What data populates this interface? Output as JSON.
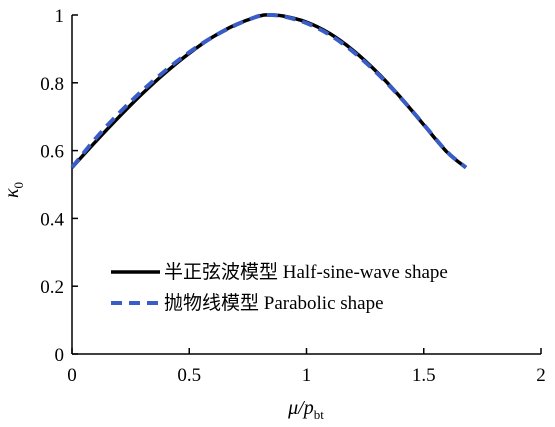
{
  "chart_data": {
    "type": "line",
    "title": "",
    "xlabel": {
      "main": "μ/p",
      "sub": "bt"
    },
    "ylabel": {
      "main": "κ",
      "sub": "0"
    },
    "xlim": [
      0,
      2
    ],
    "ylim": [
      0,
      1
    ],
    "xticks": [
      0,
      0.5,
      1,
      1.5,
      2
    ],
    "yticks": [
      0,
      0.2,
      0.4,
      0.6,
      0.8,
      1
    ],
    "xtick_labels": [
      "0",
      "0.5",
      "1",
      "1.5",
      "2"
    ],
    "ytick_labels": [
      "0",
      "0.2",
      "0.4",
      "0.6",
      "0.8",
      "1"
    ],
    "grid": false,
    "legend_position": "lower-center",
    "series": [
      {
        "name": "半正弦波模型 Half-sine-wave shape",
        "color": "#000000",
        "style": "solid",
        "x": [
          0,
          0.1,
          0.2,
          0.3,
          0.4,
          0.5,
          0.6,
          0.7,
          0.8,
          0.84,
          0.9,
          1.0,
          1.1,
          1.2,
          1.3,
          1.4,
          1.5,
          1.6,
          1.68
        ],
        "values": [
          0.55,
          0.626,
          0.699,
          0.768,
          0.831,
          0.887,
          0.935,
          0.972,
          0.997,
          1.0,
          0.997,
          0.979,
          0.945,
          0.895,
          0.832,
          0.758,
          0.676,
          0.595,
          0.55
        ]
      },
      {
        "name": "抛物线模型 Parabolic shape",
        "color": "#3a5cc7",
        "style": "dashed",
        "x": [
          0,
          0.1,
          0.2,
          0.3,
          0.4,
          0.5,
          0.6,
          0.7,
          0.8,
          0.84,
          0.9,
          1.0,
          1.1,
          1.2,
          1.3,
          1.4,
          1.5,
          1.6,
          1.68
        ],
        "values": [
          0.55,
          0.635,
          0.71,
          0.777,
          0.837,
          0.89,
          0.935,
          0.971,
          0.998,
          1.0,
          0.996,
          0.976,
          0.941,
          0.891,
          0.829,
          0.757,
          0.677,
          0.596,
          0.55
        ]
      }
    ]
  }
}
